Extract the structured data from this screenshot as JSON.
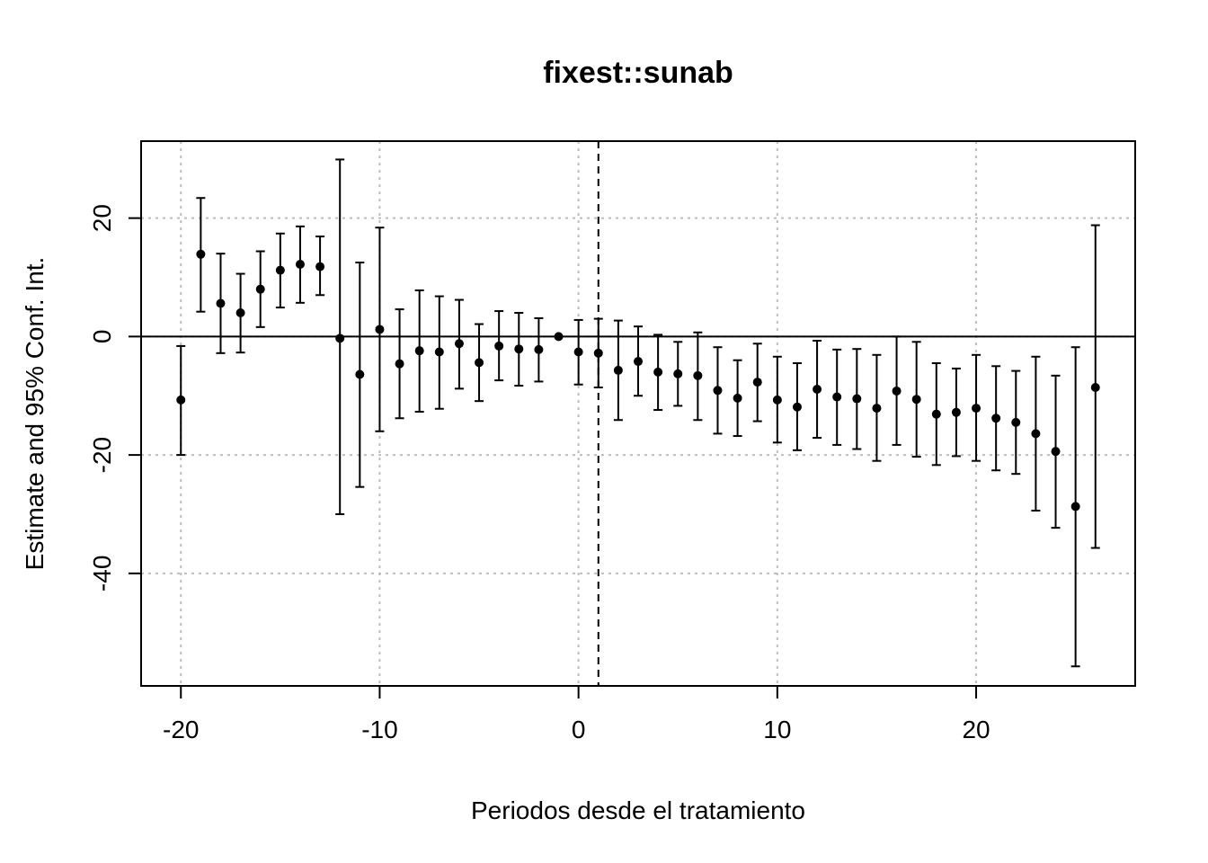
{
  "chart_data": {
    "type": "scatter",
    "title": "fixest::sunab",
    "xlabel": "Periodos desde el tratamiento",
    "ylabel": "Estimate and 95% Conf. Int.",
    "xlim": [
      -22,
      28
    ],
    "ylim": [
      -59,
      33
    ],
    "x_ticks": [
      -20,
      -10,
      0,
      10,
      20
    ],
    "y_ticks": [
      -40,
      -20,
      0,
      20
    ],
    "x_tick_labels": [
      "-20",
      "-10",
      "0",
      "10",
      "20"
    ],
    "y_tick_labels": [
      "-40",
      "-20",
      "0",
      "20"
    ],
    "grid": true,
    "zero_line": 0,
    "reference_line_x": 1,
    "points": [
      {
        "x": -20,
        "y": -10.7,
        "lo": -20.0,
        "hi": -1.6
      },
      {
        "x": -19,
        "y": 13.9,
        "lo": 4.2,
        "hi": 23.4
      },
      {
        "x": -18,
        "y": 5.6,
        "lo": -2.8,
        "hi": 14.0
      },
      {
        "x": -17,
        "y": 4.0,
        "lo": -2.7,
        "hi": 10.6
      },
      {
        "x": -16,
        "y": 8.0,
        "lo": 1.6,
        "hi": 14.4
      },
      {
        "x": -15,
        "y": 11.2,
        "lo": 4.9,
        "hi": 17.4
      },
      {
        "x": -14,
        "y": 12.2,
        "lo": 5.7,
        "hi": 18.6
      },
      {
        "x": -13,
        "y": 11.8,
        "lo": 7.0,
        "hi": 16.9
      },
      {
        "x": -12,
        "y": -0.3,
        "lo": -30.0,
        "hi": 29.9
      },
      {
        "x": -11,
        "y": -6.4,
        "lo": -25.4,
        "hi": 12.5
      },
      {
        "x": -10,
        "y": 1.2,
        "lo": -16.0,
        "hi": 18.4
      },
      {
        "x": -9,
        "y": -4.6,
        "lo": -13.8,
        "hi": 4.6
      },
      {
        "x": -8,
        "y": -2.4,
        "lo": -12.7,
        "hi": 7.8
      },
      {
        "x": -7,
        "y": -2.6,
        "lo": -12.2,
        "hi": 6.8
      },
      {
        "x": -6,
        "y": -1.2,
        "lo": -8.8,
        "hi": 6.2
      },
      {
        "x": -5,
        "y": -4.4,
        "lo": -10.9,
        "hi": 2.1
      },
      {
        "x": -4,
        "y": -1.6,
        "lo": -7.4,
        "hi": 4.3
      },
      {
        "x": -3,
        "y": -2.1,
        "lo": -8.3,
        "hi": 4.0
      },
      {
        "x": -2,
        "y": -2.2,
        "lo": -7.6,
        "hi": 3.1
      },
      {
        "x": -1,
        "y": 0.0,
        "lo": 0.0,
        "hi": 0.0
      },
      {
        "x": 0,
        "y": -2.6,
        "lo": -8.1,
        "hi": 2.8
      },
      {
        "x": 1,
        "y": -2.8,
        "lo": -8.6,
        "hi": 3.0
      },
      {
        "x": 2,
        "y": -5.7,
        "lo": -14.1,
        "hi": 2.7
      },
      {
        "x": 3,
        "y": -4.2,
        "lo": -10.0,
        "hi": 1.7
      },
      {
        "x": 4,
        "y": -6.0,
        "lo": -12.4,
        "hi": 0.3
      },
      {
        "x": 5,
        "y": -6.3,
        "lo": -11.7,
        "hi": -0.9
      },
      {
        "x": 6,
        "y": -6.6,
        "lo": -14.1,
        "hi": 0.7
      },
      {
        "x": 7,
        "y": -9.1,
        "lo": -16.4,
        "hi": -1.8
      },
      {
        "x": 8,
        "y": -10.4,
        "lo": -16.8,
        "hi": -4.0
      },
      {
        "x": 9,
        "y": -7.7,
        "lo": -14.3,
        "hi": -1.2
      },
      {
        "x": 10,
        "y": -10.7,
        "lo": -17.9,
        "hi": -3.4
      },
      {
        "x": 11,
        "y": -11.9,
        "lo": -19.2,
        "hi": -4.5
      },
      {
        "x": 12,
        "y": -8.9,
        "lo": -17.1,
        "hi": -0.7
      },
      {
        "x": 13,
        "y": -10.2,
        "lo": -18.3,
        "hi": -2.2
      },
      {
        "x": 14,
        "y": -10.5,
        "lo": -19.0,
        "hi": -2.1
      },
      {
        "x": 15,
        "y": -12.1,
        "lo": -21.0,
        "hi": -3.1
      },
      {
        "x": 16,
        "y": -9.2,
        "lo": -18.3,
        "hi": 0.0
      },
      {
        "x": 17,
        "y": -10.6,
        "lo": -20.3,
        "hi": -0.9
      },
      {
        "x": 18,
        "y": -13.1,
        "lo": -21.7,
        "hi": -4.5
      },
      {
        "x": 19,
        "y": -12.8,
        "lo": -20.2,
        "hi": -5.4
      },
      {
        "x": 20,
        "y": -12.1,
        "lo": -21.0,
        "hi": -3.1
      },
      {
        "x": 21,
        "y": -13.8,
        "lo": -22.6,
        "hi": -5.0
      },
      {
        "x": 22,
        "y": -14.5,
        "lo": -23.2,
        "hi": -5.8
      },
      {
        "x": 23,
        "y": -16.4,
        "lo": -29.4,
        "hi": -3.4
      },
      {
        "x": 24,
        "y": -19.4,
        "lo": -32.3,
        "hi": -6.6
      },
      {
        "x": 25,
        "y": -28.7,
        "lo": -55.7,
        "hi": -1.8
      },
      {
        "x": 26,
        "y": -8.6,
        "lo": -35.7,
        "hi": 18.8
      }
    ]
  }
}
